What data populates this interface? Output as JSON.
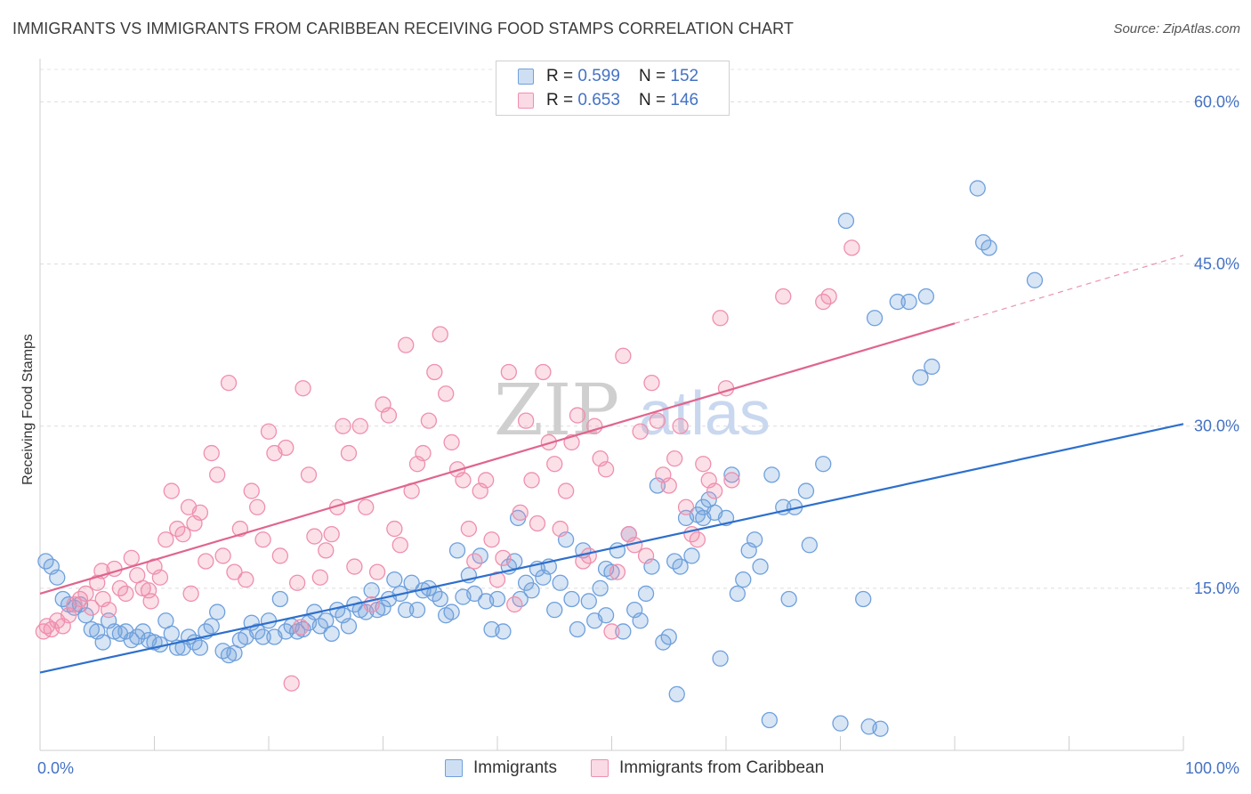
{
  "header": {
    "title": "IMMIGRANTS VS IMMIGRANTS FROM CARIBBEAN RECEIVING FOOD STAMPS CORRELATION CHART",
    "source": "Source: ZipAtlas.com"
  },
  "legend": {
    "rows": [
      {
        "r_label": "R = ",
        "r_value": "0.599",
        "n_label": "N = ",
        "n_value": "152",
        "color": "#6fa0dc"
      },
      {
        "r_label": "R = ",
        "r_value": "0.653",
        "n_label": "N = ",
        "n_value": "146",
        "color": "#ef8fae"
      }
    ]
  },
  "watermark": {
    "part1": "ZIP",
    "part2": "atlas"
  },
  "chart_data": {
    "type": "scatter",
    "title": "IMMIGRANTS VS IMMIGRANTS FROM CARIBBEAN RECEIVING FOOD STAMPS CORRELATION CHART",
    "xlabel": "",
    "ylabel": "Receiving Food Stamps",
    "xlim": [
      0,
      100
    ],
    "ylim": [
      0,
      63
    ],
    "x_tick_labels": [
      {
        "value": 0,
        "label": "0.0%"
      },
      {
        "value": 100,
        "label": "100.0%"
      }
    ],
    "y_tick_labels": [
      {
        "value": 15,
        "label": "15.0%"
      },
      {
        "value": 30,
        "label": "30.0%"
      },
      {
        "value": 45,
        "label": "45.0%"
      },
      {
        "value": 60,
        "label": "60.0%"
      }
    ],
    "grid": "horizontal dashed",
    "legend_placement": "top-center",
    "series": [
      {
        "name": "Immigrants",
        "color": "#6fa0dc",
        "line_color": "#2d6fcc",
        "trend": {
          "x": [
            0,
            100
          ],
          "y": [
            7.2,
            30.2
          ],
          "dashed_to": null
        },
        "points": [
          [
            0.5,
            17.5
          ],
          [
            1,
            17
          ],
          [
            1.5,
            16
          ],
          [
            2,
            14
          ],
          [
            2.5,
            13.5
          ],
          [
            3,
            13.2
          ],
          [
            3.5,
            13.5
          ],
          [
            4,
            12.5
          ],
          [
            4.5,
            11.2
          ],
          [
            5,
            11
          ],
          [
            5.5,
            10
          ],
          [
            6,
            12
          ],
          [
            6.5,
            11
          ],
          [
            7,
            10.8
          ],
          [
            7.5,
            11
          ],
          [
            8,
            10.2
          ],
          [
            8.5,
            10.5
          ],
          [
            9,
            11
          ],
          [
            9.5,
            10.2
          ],
          [
            10,
            10
          ],
          [
            10.5,
            9.8
          ],
          [
            11,
            12
          ],
          [
            11.5,
            10.8
          ],
          [
            12,
            9.5
          ],
          [
            12.5,
            9.5
          ],
          [
            13,
            10.5
          ],
          [
            13.5,
            10
          ],
          [
            14,
            9.5
          ],
          [
            14.5,
            11
          ],
          [
            15,
            11.5
          ],
          [
            15.5,
            12.8
          ],
          [
            16,
            9.2
          ],
          [
            16.5,
            8.8
          ],
          [
            17,
            9
          ],
          [
            17.5,
            10.2
          ],
          [
            18,
            10.5
          ],
          [
            18.5,
            11.8
          ],
          [
            19,
            11
          ],
          [
            19.5,
            10.5
          ],
          [
            20,
            12
          ],
          [
            20.5,
            10.5
          ],
          [
            21,
            14
          ],
          [
            21.5,
            11
          ],
          [
            22,
            11.5
          ],
          [
            22.5,
            11
          ],
          [
            23,
            11.2
          ],
          [
            23.5,
            11.8
          ],
          [
            24,
            12.8
          ],
          [
            24.5,
            11.5
          ],
          [
            25,
            12
          ],
          [
            25.5,
            10.8
          ],
          [
            26,
            13
          ],
          [
            26.5,
            12.5
          ],
          [
            27,
            11.5
          ],
          [
            27.5,
            13.5
          ],
          [
            28,
            13
          ],
          [
            28.5,
            12.8
          ],
          [
            29,
            14.8
          ],
          [
            29.5,
            13
          ],
          [
            30,
            13.2
          ],
          [
            30.5,
            14
          ],
          [
            31,
            15.8
          ],
          [
            31.5,
            14.5
          ],
          [
            32,
            13
          ],
          [
            32.5,
            15.5
          ],
          [
            33,
            13
          ],
          [
            33.5,
            14.8
          ],
          [
            34,
            15
          ],
          [
            34.5,
            14.5
          ],
          [
            35,
            14
          ],
          [
            35.5,
            12.5
          ],
          [
            36,
            12.8
          ],
          [
            36.5,
            18.5
          ],
          [
            37,
            14.2
          ],
          [
            37.5,
            16.2
          ],
          [
            38,
            14.5
          ],
          [
            38.5,
            18
          ],
          [
            39,
            13.8
          ],
          [
            39.5,
            11.2
          ],
          [
            40,
            14
          ],
          [
            40.5,
            11
          ],
          [
            41,
            17
          ],
          [
            41.5,
            17.5
          ],
          [
            42,
            14
          ],
          [
            42.5,
            15.5
          ],
          [
            43,
            14.8
          ],
          [
            43.5,
            16.8
          ],
          [
            44,
            16
          ],
          [
            44.5,
            17
          ],
          [
            45,
            13
          ],
          [
            45.5,
            15.5
          ],
          [
            46,
            19.5
          ],
          [
            46.5,
            14
          ],
          [
            47,
            11.2
          ],
          [
            47.5,
            18.5
          ],
          [
            48,
            13.8
          ],
          [
            48.5,
            12
          ],
          [
            49,
            15
          ],
          [
            49.5,
            12.5
          ],
          [
            50,
            16.5
          ],
          [
            50.5,
            18.5
          ],
          [
            51,
            11
          ],
          [
            51.5,
            20
          ],
          [
            52,
            13
          ],
          [
            52.5,
            12
          ],
          [
            53,
            14.5
          ],
          [
            53.5,
            17
          ],
          [
            54,
            24.5
          ],
          [
            54.5,
            10
          ],
          [
            55,
            10.5
          ],
          [
            55.5,
            17.5
          ],
          [
            56,
            17
          ],
          [
            56.5,
            21.5
          ],
          [
            57,
            18
          ],
          [
            57.5,
            21.8
          ],
          [
            58,
            22.5
          ],
          [
            58.5,
            23.2
          ],
          [
            59,
            22
          ],
          [
            59.5,
            8.5
          ],
          [
            60,
            21.5
          ],
          [
            60.5,
            25.5
          ],
          [
            61,
            14.5
          ],
          [
            61.5,
            15.8
          ],
          [
            62,
            18.5
          ],
          [
            62.5,
            19.5
          ],
          [
            63,
            17
          ],
          [
            64,
            25.5
          ],
          [
            65,
            22.5
          ],
          [
            65.5,
            14
          ],
          [
            66,
            22.5
          ],
          [
            67,
            24
          ],
          [
            68.5,
            26.5
          ],
          [
            70,
            2.5
          ],
          [
            72,
            14
          ],
          [
            73,
            40
          ],
          [
            73.5,
            2
          ],
          [
            75,
            41.5
          ],
          [
            76,
            41.5
          ],
          [
            77,
            34.5
          ],
          [
            77.5,
            42
          ],
          [
            78,
            35.5
          ],
          [
            82,
            52
          ],
          [
            82.5,
            47
          ],
          [
            83,
            46.5
          ],
          [
            70.5,
            49
          ],
          [
            87,
            43.5
          ],
          [
            55.7,
            5.2
          ],
          [
            63.8,
            2.8
          ],
          [
            72.5,
            2.2
          ],
          [
            67.3,
            19
          ],
          [
            58,
            21.5
          ],
          [
            41.8,
            21.5
          ],
          [
            49.5,
            16.8
          ]
        ]
      },
      {
        "name": "Immigrants from Caribbean",
        "color": "#ef8fae",
        "line_color": "#e0658e",
        "trend": {
          "x": [
            0,
            80
          ],
          "y": [
            14.5,
            39.5
          ],
          "dashed_to": [
            100,
            45.8
          ]
        },
        "points": [
          [
            0.3,
            11
          ],
          [
            0.6,
            11.5
          ],
          [
            1,
            11.2
          ],
          [
            1.5,
            12
          ],
          [
            2,
            11.5
          ],
          [
            2.5,
            12.5
          ],
          [
            3,
            13.5
          ],
          [
            3.5,
            14
          ],
          [
            4,
            14.5
          ],
          [
            4.5,
            13.2
          ],
          [
            5,
            15.5
          ],
          [
            5.5,
            14
          ],
          [
            6,
            13
          ],
          [
            6.5,
            16.8
          ],
          [
            7,
            15
          ],
          [
            7.5,
            14.5
          ],
          [
            8,
            17.8
          ],
          [
            8.5,
            16.2
          ],
          [
            9,
            15
          ],
          [
            9.5,
            14.8
          ],
          [
            10,
            17
          ],
          [
            10.5,
            16
          ],
          [
            11,
            19.5
          ],
          [
            11.5,
            24
          ],
          [
            12,
            20.5
          ],
          [
            12.5,
            20
          ],
          [
            13,
            22.5
          ],
          [
            13.5,
            21
          ],
          [
            14,
            22
          ],
          [
            14.5,
            17.5
          ],
          [
            15,
            27.5
          ],
          [
            15.5,
            25.5
          ],
          [
            16,
            18
          ],
          [
            16.5,
            34
          ],
          [
            17,
            16.5
          ],
          [
            17.5,
            20.5
          ],
          [
            18,
            15.8
          ],
          [
            18.5,
            24
          ],
          [
            19,
            22.5
          ],
          [
            19.5,
            19.5
          ],
          [
            20,
            29.5
          ],
          [
            20.5,
            27.5
          ],
          [
            21,
            18
          ],
          [
            21.5,
            28
          ],
          [
            22,
            6.2
          ],
          [
            22.5,
            15.5
          ],
          [
            23,
            33.5
          ],
          [
            23.5,
            25.5
          ],
          [
            24,
            19.8
          ],
          [
            24.5,
            16
          ],
          [
            25,
            18.5
          ],
          [
            25.5,
            20
          ],
          [
            26,
            22.5
          ],
          [
            26.5,
            30
          ],
          [
            27,
            27.5
          ],
          [
            27.5,
            17
          ],
          [
            28,
            30
          ],
          [
            28.5,
            22.5
          ],
          [
            29,
            13.5
          ],
          [
            29.5,
            16.5
          ],
          [
            30,
            32
          ],
          [
            30.5,
            31
          ],
          [
            31,
            20.5
          ],
          [
            31.5,
            19
          ],
          [
            32,
            37.5
          ],
          [
            32.5,
            24
          ],
          [
            33,
            26.5
          ],
          [
            33.5,
            27.5
          ],
          [
            34,
            30.5
          ],
          [
            34.5,
            35
          ],
          [
            35,
            38.5
          ],
          [
            35.5,
            33
          ],
          [
            36,
            28.5
          ],
          [
            36.5,
            26
          ],
          [
            37,
            25
          ],
          [
            37.5,
            20.5
          ],
          [
            38,
            17.5
          ],
          [
            38.5,
            24
          ],
          [
            39,
            25
          ],
          [
            39.5,
            19.5
          ],
          [
            40,
            15.8
          ],
          [
            40.5,
            17.8
          ],
          [
            41,
            35
          ],
          [
            41.5,
            13.5
          ],
          [
            42,
            22
          ],
          [
            42.5,
            30.5
          ],
          [
            43,
            25
          ],
          [
            43.5,
            21
          ],
          [
            44,
            35
          ],
          [
            44.5,
            28.5
          ],
          [
            45,
            26.5
          ],
          [
            45.5,
            20.5
          ],
          [
            46,
            24
          ],
          [
            46.5,
            28.5
          ],
          [
            47,
            31
          ],
          [
            47.5,
            17.5
          ],
          [
            48,
            18
          ],
          [
            48.5,
            30
          ],
          [
            49,
            27
          ],
          [
            49.5,
            26
          ],
          [
            50,
            11
          ],
          [
            50.5,
            16.5
          ],
          [
            51,
            36.5
          ],
          [
            51.5,
            20
          ],
          [
            52,
            19
          ],
          [
            52.5,
            29.5
          ],
          [
            53,
            18
          ],
          [
            53.5,
            34
          ],
          [
            54,
            30.5
          ],
          [
            54.5,
            25.5
          ],
          [
            55,
            24.5
          ],
          [
            55.5,
            27
          ],
          [
            56,
            30
          ],
          [
            56.5,
            22.5
          ],
          [
            57,
            20
          ],
          [
            57.5,
            19.5
          ],
          [
            58,
            26.5
          ],
          [
            58.5,
            25
          ],
          [
            59,
            24
          ],
          [
            59.5,
            40
          ],
          [
            60,
            33.5
          ],
          [
            60.5,
            25
          ],
          [
            65,
            42
          ],
          [
            68.5,
            41.5
          ],
          [
            69,
            42
          ],
          [
            71,
            46.5
          ],
          [
            22.8,
            11.4
          ],
          [
            9.7,
            13.8
          ],
          [
            5.4,
            16.6
          ],
          [
            13.2,
            14.5
          ]
        ]
      }
    ]
  }
}
